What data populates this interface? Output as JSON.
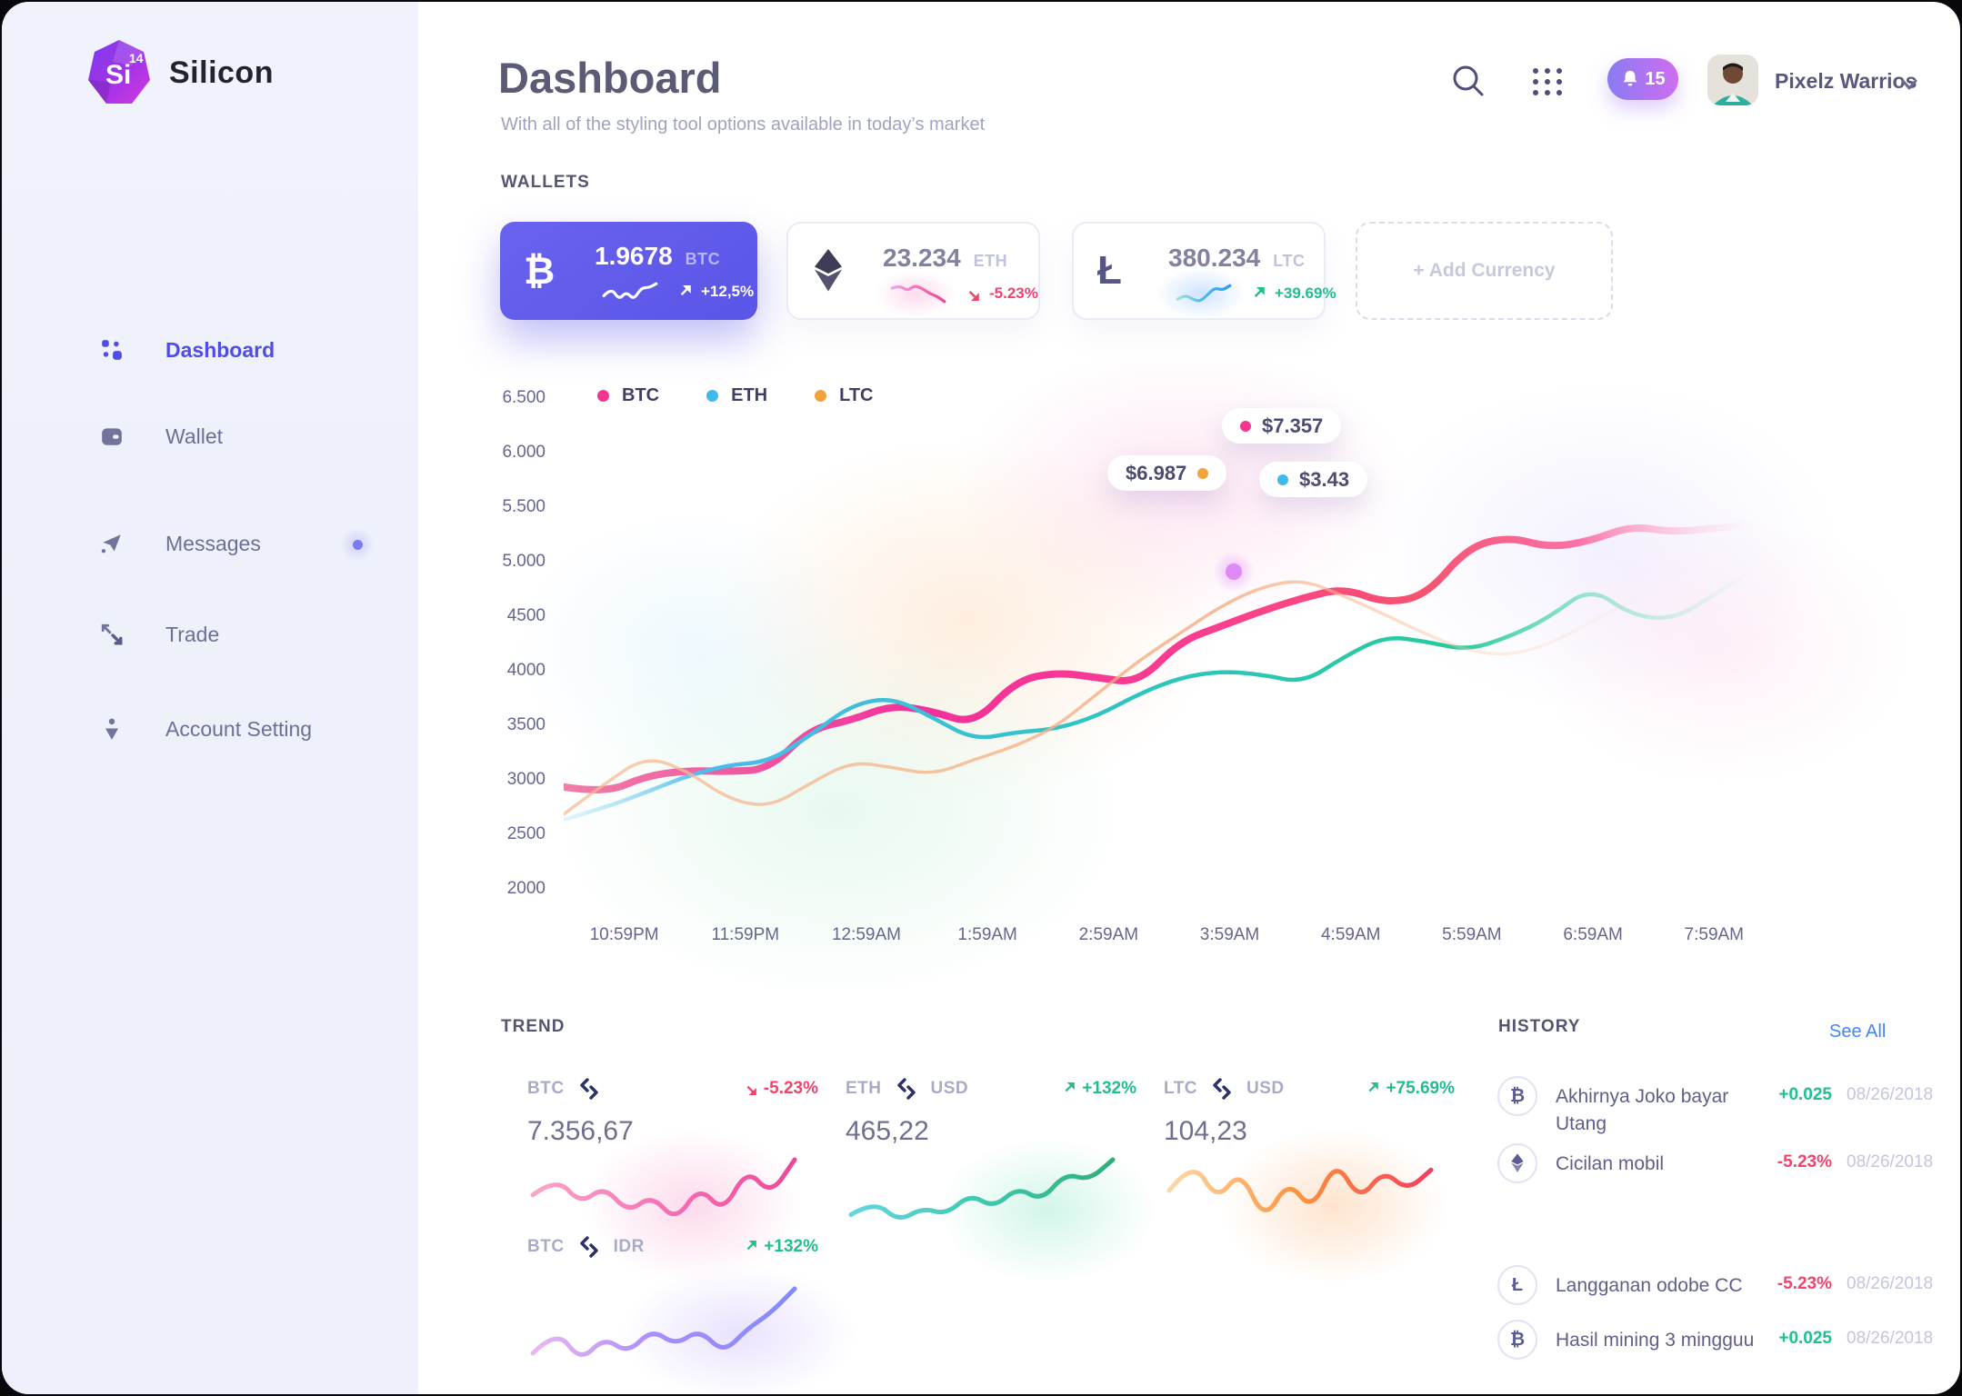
{
  "brand": {
    "name": "Silicon",
    "logo_text": "Si",
    "logo_sup": "14"
  },
  "sidebar": {
    "items": [
      {
        "label": "Dashboard",
        "active": true
      },
      {
        "label": "Wallet",
        "active": false
      },
      {
        "label": "Messages",
        "active": false,
        "badge": true
      },
      {
        "label": "Trade",
        "active": false
      },
      {
        "label": "Account Setting",
        "active": false
      }
    ]
  },
  "header": {
    "title": "Dashboard",
    "subtitle": "With all of the styling tool options available in today’s market",
    "notification_count": "15",
    "user_name": "Pixelz Warrios"
  },
  "wallets": {
    "section_label": "WALLETS",
    "add_label": "+ Add Currency",
    "cards": [
      {
        "symbol": "₿",
        "amount": "1.9678",
        "unit": "BTC",
        "change": "+12,5%",
        "direction": "up",
        "spark": [
          4,
          6,
          3,
          5,
          3,
          6,
          6,
          7
        ],
        "spark_colors": [
          "#ffffff",
          "#ffffff"
        ]
      },
      {
        "amount": "23.234",
        "unit": "ETH",
        "change": "-5.23%",
        "direction": "down",
        "spark": [
          6,
          7,
          5,
          7,
          6,
          4,
          3,
          1
        ],
        "spark_colors": [
          "#e9a6f0",
          "#f472b6",
          "#ec4899"
        ]
      },
      {
        "symbol": "Ł",
        "amount": "380.234",
        "unit": "LTC",
        "change": "+39.69%",
        "direction": "up",
        "spark": [
          3,
          5,
          3,
          2,
          5,
          8,
          7,
          9
        ],
        "spark_colors": [
          "#9fe3d0",
          "#4ab9ea",
          "#2f9ef0"
        ]
      }
    ]
  },
  "chart_data": {
    "type": "line",
    "ylim": [
      2000,
      6500
    ],
    "y_ticks": [
      "6.500",
      "6.000",
      "5.500",
      "5.000",
      "4500",
      "4000",
      "3500",
      "3000",
      "2500",
      "2000"
    ],
    "x_labels": [
      "10:59PM",
      "11:59PM",
      "12:59AM",
      "1:59AM",
      "2:59AM",
      "3:59AM",
      "4:59AM",
      "5:59AM",
      "6:59AM",
      "7:59AM"
    ],
    "legend": [
      {
        "name": "BTC",
        "color": "#f5368f"
      },
      {
        "name": "ETH",
        "color": "#41b9ee"
      },
      {
        "name": "LTC",
        "color": "#f2a33c"
      }
    ],
    "series": [
      {
        "name": "BTC",
        "width": 8,
        "end": 1,
        "values": [
          2950,
          2890,
          3050,
          3100,
          3090,
          3110,
          3480,
          3560,
          3700,
          3640,
          3520,
          3920,
          4000,
          3950,
          3900,
          4280,
          4420,
          4560,
          4680,
          4770,
          4630,
          4700,
          5140,
          5240,
          5140,
          5200,
          5340,
          5280,
          5320,
          5350
        ],
        "stops": [
          [
            "0%",
            "#ee6f9e",
            0.9
          ],
          [
            "30%",
            "#f3309b",
            1
          ],
          [
            "55%",
            "#fa3f8e",
            1
          ],
          [
            "72%",
            "#f6536f",
            1
          ],
          [
            "85%",
            "#fa71a5",
            1
          ],
          [
            "100%",
            "#fdc9e2",
            0
          ]
        ]
      },
      {
        "name": "ETH",
        "width": 4.5,
        "end": 1,
        "values": [
          2650,
          2760,
          2900,
          3050,
          3150,
          3180,
          3420,
          3700,
          3770,
          3580,
          3380,
          3450,
          3480,
          3600,
          3800,
          3950,
          4010,
          3980,
          3900,
          4140,
          4330,
          4280,
          4200,
          4320,
          4500,
          4780,
          4520,
          4480,
          4700,
          4950
        ],
        "stops": [
          [
            "0%",
            "#a8ddf6",
            0.3
          ],
          [
            "12%",
            "#4cbcec",
            1
          ],
          [
            "45%",
            "#2ec4c4",
            1
          ],
          [
            "75%",
            "#26ca9c",
            1
          ],
          [
            "100%",
            "#7fe6c6",
            0
          ]
        ]
      },
      {
        "name": "LTC",
        "width": 3.5,
        "end": 0.93,
        "values": [
          2700,
          2980,
          3230,
          3100,
          2840,
          2760,
          2980,
          3180,
          3130,
          3060,
          3200,
          3320,
          3500,
          3800,
          4100,
          4350,
          4600,
          4780,
          4850,
          4700,
          4530,
          4350,
          4200,
          4150,
          4250,
          4450,
          4650,
          4760
        ],
        "stops": [
          [
            "0%",
            "#f7bd97",
            0.75
          ],
          [
            "60%",
            "#f5ab80",
            0.8
          ],
          [
            "100%",
            "#fbd9bd",
            0
          ]
        ]
      }
    ],
    "tooltips": [
      {
        "label": "$7.357",
        "dot_color": "#f5368f",
        "dot_side": "left"
      },
      {
        "label": "$6.987",
        "dot_color": "#f2a33c",
        "dot_side": "right"
      },
      {
        "label": "$3.43",
        "dot_color": "#41b9ee",
        "dot_side": "left"
      }
    ]
  },
  "trend": {
    "section_label": "TREND",
    "cards": [
      {
        "base": "BTC",
        "quote": "",
        "change": "-5.23%",
        "direction": "down",
        "value": "7.356,67",
        "spark": [
          5,
          7,
          4,
          6,
          3,
          5,
          2,
          6,
          3,
          8,
          5,
          9
        ],
        "spark_colors": [
          "#f9a8c6",
          "#f472b6",
          "#ec4899"
        ],
        "glow": "rgba(244,114,182,.26)"
      },
      {
        "base": "ETH",
        "quote": "USD",
        "change": "+132%",
        "direction": "up",
        "value": "465,22",
        "spark": [
          3,
          5,
          2,
          4,
          3,
          6,
          4,
          7,
          5,
          9,
          8,
          11
        ],
        "spark_colors": [
          "#67d5e0",
          "#3ec9b0",
          "#2fae77"
        ],
        "glow": "rgba(52,211,153,.22)"
      },
      {
        "base": "LTC",
        "quote": "USD",
        "change": "+75.69%",
        "direction": "up",
        "value": "104,23",
        "spark": [
          5,
          8,
          4,
          7,
          2,
          6,
          3,
          8,
          4,
          7,
          5,
          7
        ],
        "spark_colors": [
          "#fcd9a8",
          "#fb923c",
          "#f43f5e"
        ],
        "glow": "rgba(251,146,60,.25)"
      },
      {
        "base": "BTC",
        "quote": "IDR",
        "change": "+132%",
        "direction": "up",
        "value": "",
        "spark": [
          3,
          6,
          2,
          5,
          3,
          6,
          4,
          6,
          3,
          6,
          8,
          11
        ],
        "spark_colors": [
          "#e9b8f0",
          "#a78bfa",
          "#818cf8"
        ],
        "glow": "rgba(167,139,250,.25)"
      }
    ]
  },
  "history": {
    "section_label": "HISTORY",
    "see_all": "See All",
    "rows": [
      {
        "icon": "btc",
        "icon_char": "₿",
        "title": "Akhirnya Joko bayar Utang",
        "amount": "+0.025",
        "amount_color": "#1fbf92",
        "date": "08/26/2018"
      },
      {
        "icon": "eth",
        "icon_char": "",
        "title": "Cicilan mobil",
        "amount": "-5.23%",
        "amount_color": "#f0446d",
        "date": "08/26/2018"
      },
      {
        "icon": "ltc",
        "icon_char": "Ł",
        "title": "Langganan odobe CC",
        "amount": "-5.23%",
        "amount_color": "#f0446d",
        "date": "08/26/2018"
      },
      {
        "icon": "btc",
        "icon_char": "₿",
        "title": "Hasil mining 3 mingguu",
        "amount": "+0.025",
        "amount_color": "#1fbf92",
        "date": "08/26/2018"
      }
    ]
  },
  "colors": {
    "accent": "#5b58e8",
    "positive": "#1fbf92",
    "negative": "#f0446d",
    "link": "#4285f4"
  }
}
